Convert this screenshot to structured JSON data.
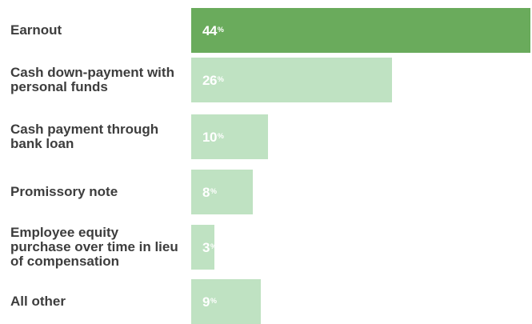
{
  "colors": {
    "highlight": "#6aab5c",
    "default": "#bfe2c2",
    "label": "#3d3d3d",
    "value_text": "#ffffff"
  },
  "chart_data": {
    "type": "bar",
    "orientation": "horizontal",
    "categories": [
      "Earnout",
      "Cash down-payment with personal funds",
      "Cash payment through bank loan",
      "Promissory note",
      "Employee equity purchase over time in lieu of compensation",
      "All other"
    ],
    "values": [
      44,
      26,
      10,
      8,
      3,
      9
    ],
    "value_unit": "%",
    "highlight_index": 0,
    "xlim": [
      0,
      44
    ],
    "grid": false,
    "legend": "none"
  }
}
